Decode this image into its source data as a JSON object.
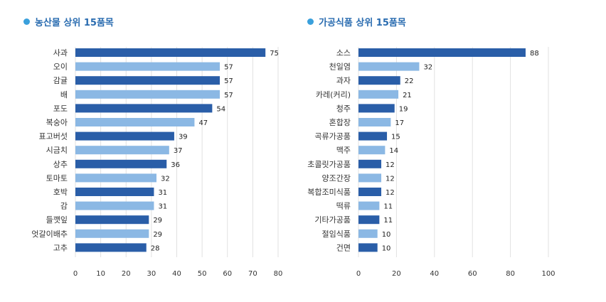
{
  "colors": {
    "dark_bar": "#2a5ea8",
    "light_bar": "#8bb8e4",
    "grid": "#e1e1e1",
    "title": "#2a6cb0",
    "dot": "#3aa0dc"
  },
  "chart_data": [
    {
      "type": "bar",
      "orientation": "horizontal",
      "title": "농산물 상위 15품목",
      "categories": [
        "사과",
        "오이",
        "감귤",
        "배",
        "포도",
        "복숭아",
        "표고버섯",
        "시금치",
        "상추",
        "토마토",
        "호박",
        "감",
        "들깻잎",
        "엇갈이배추",
        "고추"
      ],
      "values": [
        75,
        57,
        57,
        57,
        54,
        47,
        39,
        37,
        36,
        32,
        31,
        31,
        29,
        29,
        28
      ],
      "xlim": [
        0,
        80
      ],
      "ticks": [
        0,
        10,
        20,
        30,
        40,
        50,
        60,
        70,
        80
      ],
      "grid": true,
      "bar_colors": "alternating dark/light"
    },
    {
      "type": "bar",
      "orientation": "horizontal",
      "title": "가공식품 상위 15품목",
      "categories": [
        "소스",
        "천일염",
        "과자",
        "카레(커리)",
        "청주",
        "혼합장",
        "곡류가공품",
        "맥주",
        "초콜릿가공품",
        "양조간장",
        "복합조미식품",
        "떡류",
        "기타가공품",
        "절임식품",
        "건면"
      ],
      "values": [
        88,
        32,
        22,
        21,
        19,
        17,
        15,
        14,
        12,
        12,
        12,
        11,
        11,
        10,
        10
      ],
      "xlim": [
        0,
        100
      ],
      "ticks": [
        0,
        20,
        40,
        60,
        80,
        100
      ],
      "grid": true,
      "bar_colors": "alternating dark/light"
    }
  ]
}
